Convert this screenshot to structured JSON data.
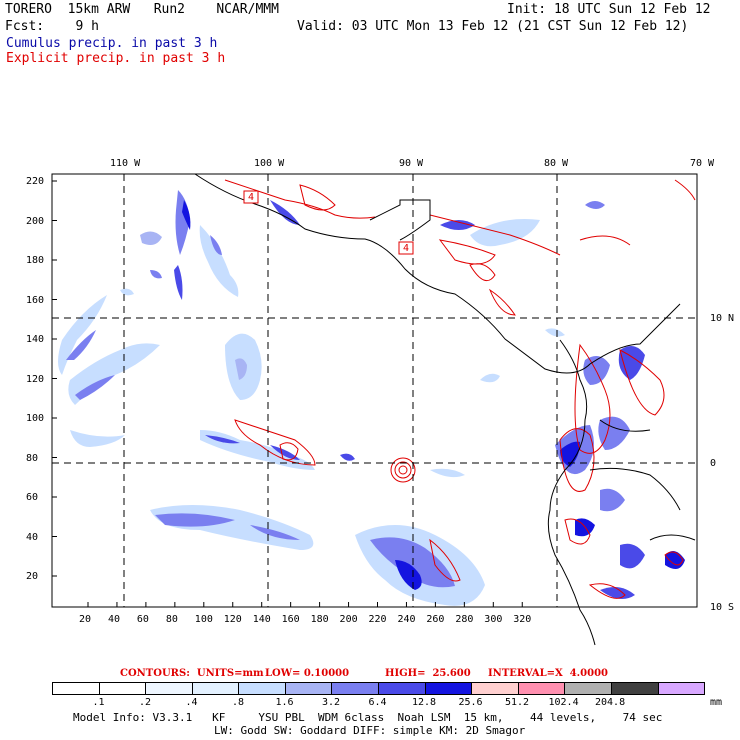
{
  "header": {
    "model": "TORERO  15km ARW   Run2    NCAR/MMM",
    "init": "Init: 18 UTC Sun 12 Feb 12",
    "fcst": "Fcst:    9 h",
    "valid": "Valid: 03 UTC Mon 13 Feb 12 (21 CST Sun 12 Feb 12)",
    "cumulus": "Cumulus precip. in past 3 h",
    "explicit": "Explicit precip. in past 3 h"
  },
  "map": {
    "top_lon_labels": [
      "110 W",
      "100 W",
      "90 W",
      "80 W",
      "70 W"
    ],
    "right_lat_labels": [
      "10 N",
      "0",
      "10 S"
    ],
    "y_ticks": [
      "220",
      "200",
      "180",
      "160",
      "140",
      "120",
      "100",
      "80",
      "60",
      "40",
      "20"
    ],
    "x_ticks": [
      "20",
      "40",
      "60",
      "80",
      "100",
      "120",
      "140",
      "160",
      "180",
      "200",
      "220",
      "240",
      "260",
      "280",
      "300",
      "320"
    ],
    "box_labels": [
      "4",
      "4"
    ]
  },
  "contour_info": {
    "contours": "CONTOURS:  UNITS=mm",
    "low": "LOW= 0.10000",
    "high": "HIGH=  25.600",
    "interval": "INTERVAL=X  4.0000"
  },
  "colorbar": {
    "labels": [
      ".1",
      ".2",
      ".4",
      ".8",
      "1.6",
      "3.2",
      "6.4",
      "12.8",
      "25.6",
      "51.2",
      "102.4",
      "204.8"
    ],
    "units": "mm",
    "colors": [
      "#ffffff",
      "#ffffff",
      "#eef6ff",
      "#e3f1ff",
      "#c7deff",
      "#a8b4f4",
      "#7a7ff0",
      "#4a4ae8",
      "#1414e0",
      "#ffd0d0",
      "#ff90b0",
      "#b0b0b0",
      "#404040",
      "#d8a8ff"
    ]
  },
  "footer": {
    "line1": "Model Info: V3.3.1   KF     YSU PBL  WDM 6class  Noah LSM  15 km,    44 levels,    74 sec",
    "line2": "LW: Godd SW: Goddard DIFF: simple KM: 2D Smagor"
  }
}
